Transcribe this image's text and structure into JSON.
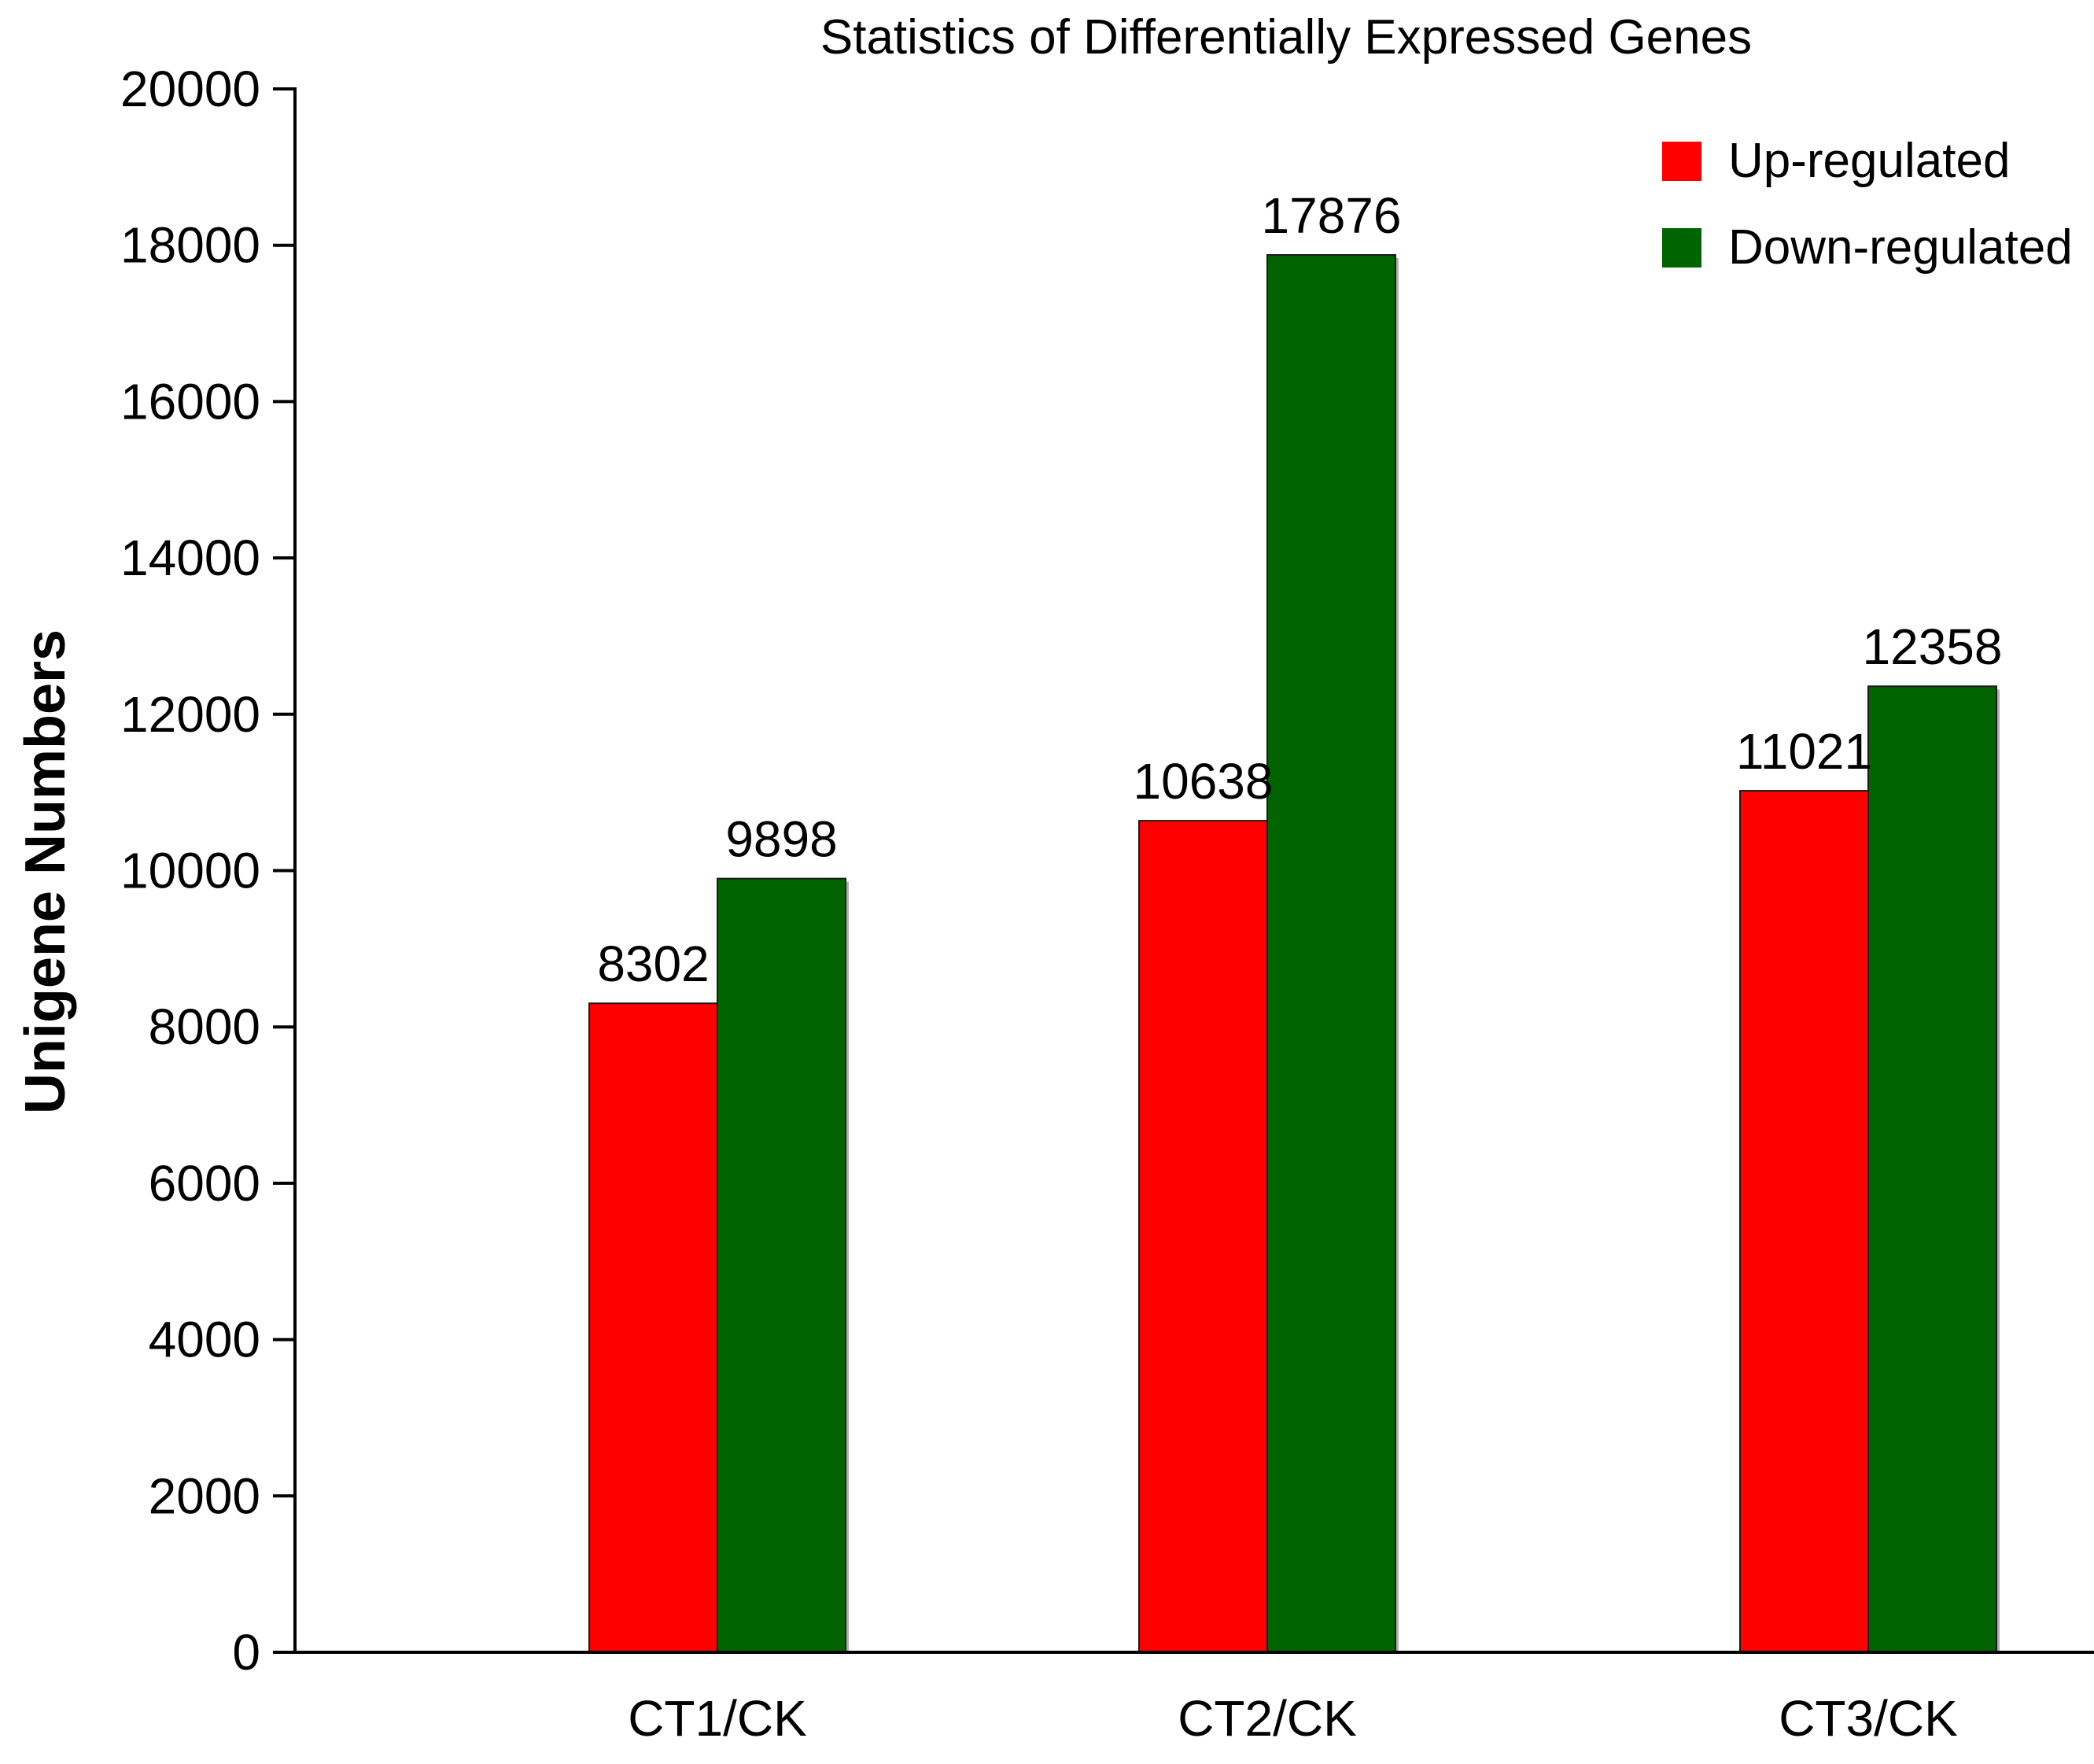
{
  "chart_data": {
    "type": "bar",
    "title": "Statistics of Differentially Expressed Genes",
    "xlabel": "",
    "ylabel": "Unigene Numbers",
    "ylim": [
      0,
      20000
    ],
    "yticks": [
      0,
      2000,
      4000,
      6000,
      8000,
      10000,
      12000,
      14000,
      16000,
      18000,
      20000
    ],
    "categories": [
      "CT1/CK",
      "CT2/CK",
      "CT3/CK"
    ],
    "series": [
      {
        "name": "Up-regulated",
        "color": "#ff0000",
        "values": [
          8302,
          10638,
          11021
        ]
      },
      {
        "name": "Down-regulated",
        "color": "#006400",
        "values": [
          9898,
          17876,
          12358
        ]
      }
    ],
    "legend_position": "top-right",
    "grid": false
  }
}
